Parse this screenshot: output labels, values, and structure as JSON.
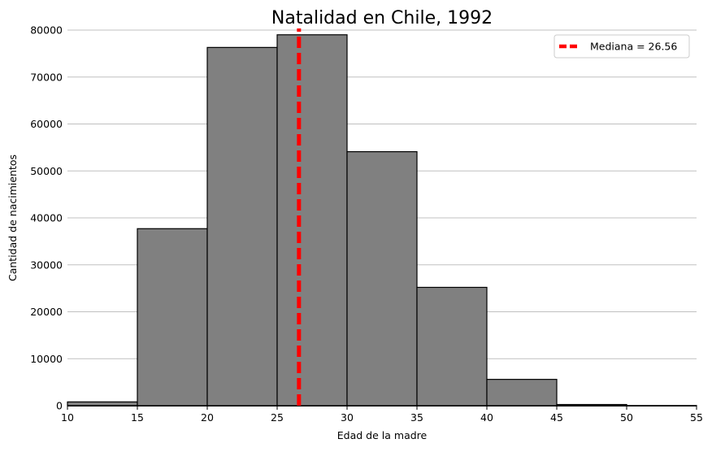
{
  "chart_data": {
    "type": "bar",
    "title": "Natalidad en Chile, 1992",
    "xlabel": "Edad de la madre",
    "ylabel": "Cantidad de nacimientos",
    "xlim": [
      10,
      55
    ],
    "ylim": [
      0,
      80000
    ],
    "x_ticks": [
      "10",
      "15",
      "20",
      "25",
      "30",
      "35",
      "40",
      "45",
      "50",
      "55"
    ],
    "y_ticks": [
      "0",
      "10000",
      "20000",
      "30000",
      "40000",
      "50000",
      "60000",
      "70000",
      "80000"
    ],
    "bins": [
      {
        "start": 10,
        "end": 15,
        "value": 800
      },
      {
        "start": 15,
        "end": 20,
        "value": 37700
      },
      {
        "start": 20,
        "end": 25,
        "value": 76300
      },
      {
        "start": 25,
        "end": 30,
        "value": 79000
      },
      {
        "start": 30,
        "end": 35,
        "value": 54100
      },
      {
        "start": 35,
        "end": 40,
        "value": 25200
      },
      {
        "start": 40,
        "end": 45,
        "value": 5600
      },
      {
        "start": 45,
        "end": 50,
        "value": 250
      },
      {
        "start": 50,
        "end": 55,
        "value": 30
      }
    ],
    "median": {
      "value": 26.56,
      "label": "Mediana = 26.56"
    },
    "grid": {
      "y": true,
      "x": false
    },
    "legend_position": "top-right",
    "colors": {
      "bar_fill": "#808080",
      "bar_stroke": "#000000",
      "median_line": "#ff0000",
      "grid": "#c0c0c0"
    }
  }
}
